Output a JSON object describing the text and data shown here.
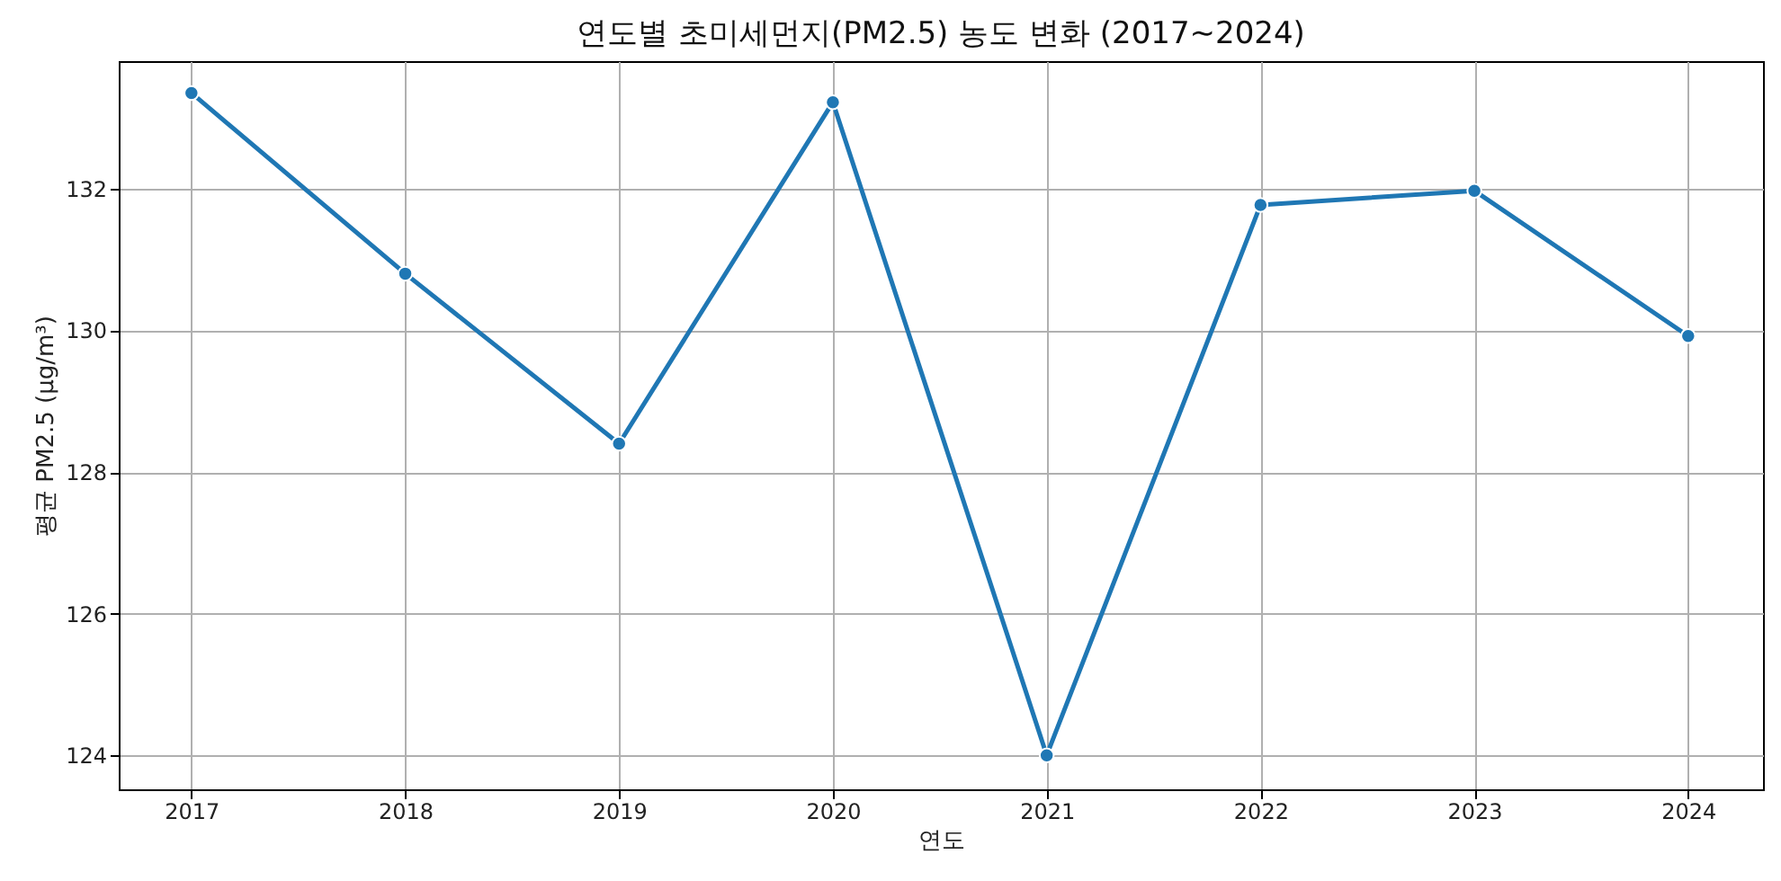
{
  "chart_data": {
    "type": "line",
    "title": "연도별 초미세먼지(PM2.5) 농도 변화 (2017~2024)",
    "xlabel": "연도",
    "ylabel": "평균 PM2.5 (µg/m³)",
    "x": [
      2017,
      2018,
      2019,
      2020,
      2021,
      2022,
      2023,
      2024
    ],
    "series": [
      {
        "color": "#1f77b4",
        "values": [
          133.35,
          130.8,
          128.4,
          133.22,
          124.0,
          131.77,
          131.97,
          129.92
        ]
      }
    ],
    "xlim": [
      2016.66,
      2024.35
    ],
    "xticks": [
      2017,
      2018,
      2019,
      2020,
      2021,
      2022,
      2023,
      2024
    ],
    "ylim": [
      123.52,
      133.8
    ],
    "yticks": [
      124,
      126,
      128,
      130,
      132
    ],
    "grid": true,
    "marker": "circle",
    "line_style": "solid"
  }
}
